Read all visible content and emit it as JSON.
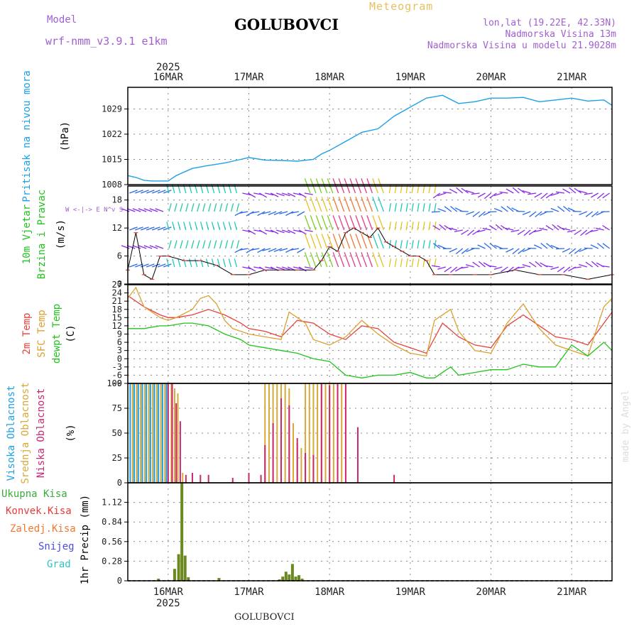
{
  "header": {
    "model_label": "Model",
    "model_value": "wrf-nmm_v3.9.1  e1km",
    "station": "GOLUBOVCI",
    "product": "Meteogram",
    "coords": "lon,lat (19.22E, 42.33N)",
    "elevation": "Nadmorska Visina 13m",
    "model_elevation": "Nadmorska Visina u modelu 21.9028m",
    "footer_station": "GOLUBOVCI",
    "credit": "made by Angel"
  },
  "colors": {
    "pressure": "#1ea0e6",
    "temp2m": "#e8403a",
    "sfc_temp": "#dca030",
    "dewpoint": "#22c31e",
    "cloud_high": "#1ea0e6",
    "cloud_mid": "#d8a838",
    "cloud_low": "#c82870",
    "precip_total": "#3caa3c",
    "precip_conv": "#e83a3a",
    "precip_strat": "#f07830",
    "snow": "#4a4ae8",
    "grad": "#2ec2c2",
    "wind_calm": "#7a1ed0",
    "wind_line": "#000000",
    "wind_marker": "#e8403a",
    "grid": "#888888"
  },
  "chart_data": {
    "type": "meteogram",
    "time_axis": {
      "year_label": "2025",
      "day_labels": [
        "16MAR",
        "17MAR",
        "18MAR",
        "19MAR",
        "20MAR",
        "21MAR"
      ],
      "range_days": [
        -0.5,
        5.5
      ]
    },
    "panels": [
      {
        "id": "pressure",
        "type": "line",
        "ylabel": [
          "Pritisak na nivou mora",
          "(hPa)"
        ],
        "yticks": [
          1008,
          1015,
          1022,
          1029
        ],
        "ylim": [
          1008,
          1035
        ],
        "series": [
          {
            "key": "pressure",
            "x": [
              -0.5,
              -0.4,
              -0.3,
              -0.2,
              0,
              0.1,
              0.2,
              0.3,
              0.5,
              0.7,
              0.9,
              1.0,
              1.2,
              1.4,
              1.6,
              1.8,
              1.9,
              2.0,
              2.2,
              2.4,
              2.6,
              2.8,
              3.0,
              3.2,
              3.4,
              3.6,
              3.8,
              4.0,
              4.2,
              4.4,
              4.6,
              4.8,
              5.0,
              5.2,
              5.4,
              5.5
            ],
            "y": [
              1010.5,
              1010,
              1009.2,
              1009,
              1009,
              1010.5,
              1011.5,
              1012.5,
              1013.3,
              1014,
              1015,
              1015.5,
              1014.8,
              1014.7,
              1014.5,
              1015,
              1016.5,
              1017.5,
              1020,
              1022.5,
              1023.5,
              1027,
              1029.5,
              1032,
              1032.8,
              1030.5,
              1031,
              1032,
              1032,
              1032.2,
              1031,
              1031.5,
              1032,
              1031.2,
              1031.5,
              1030
            ]
          }
        ]
      },
      {
        "id": "wind",
        "type": "barbs",
        "ylabel": [
          "10m Vjetar",
          "Brzina i Pravac",
          "(m/s)"
        ],
        "compass": "W <-|-> E  N^v S",
        "yticks": [
          0,
          6,
          12,
          18
        ],
        "ylim": [
          0,
          21
        ],
        "speed_x": [
          -0.5,
          -0.4,
          -0.3,
          -0.2,
          -0.1,
          0,
          0.2,
          0.4,
          0.6,
          0.8,
          1.0,
          1.2,
          1.4,
          1.6,
          1.8,
          1.9,
          2.0,
          2.1,
          2.2,
          2.3,
          2.4,
          2.5,
          2.6,
          2.7,
          2.8,
          2.9,
          3.0,
          3.1,
          3.2,
          3.3,
          3.5,
          3.8,
          4.0,
          4.3,
          4.6,
          4.9,
          5.2,
          5.5
        ],
        "speed_y": [
          3,
          11,
          2,
          1,
          6,
          6,
          5,
          5,
          4,
          2,
          2,
          3,
          3,
          3,
          3,
          5,
          8,
          7,
          11,
          12,
          11,
          10,
          12,
          9,
          8,
          7,
          6,
          6,
          5,
          2,
          2,
          2,
          2,
          3,
          2,
          2,
          1,
          2
        ]
      },
      {
        "id": "temperature",
        "type": "line",
        "ylabel": [
          "2m Temp",
          "SFC Temp",
          "dewpt Temp",
          "(C)"
        ],
        "yticks": [
          -9,
          -6,
          -3,
          0,
          3,
          6,
          9,
          12,
          15,
          18,
          21,
          24,
          27
        ],
        "ylim": [
          -9,
          27
        ],
        "series": [
          {
            "key": "temp2m",
            "x": [
              -0.5,
              -0.3,
              -0.1,
              0,
              0.1,
              0.3,
              0.5,
              0.7,
              0.9,
              1.0,
              1.2,
              1.4,
              1.6,
              1.8,
              2.0,
              2.2,
              2.4,
              2.6,
              2.8,
              3.0,
              3.2,
              3.4,
              3.6,
              3.8,
              4.0,
              4.2,
              4.4,
              4.6,
              4.8,
              5.0,
              5.2,
              5.4,
              5.5
            ],
            "y": [
              23,
              19,
              16,
              15,
              15,
              16,
              18,
              16,
              13,
              11,
              10,
              8,
              14,
              13,
              9,
              7,
              12,
              11,
              6,
              4,
              2,
              13,
              8,
              5,
              4,
              12,
              16,
              12,
              8,
              7,
              5,
              13,
              17
            ]
          },
          {
            "key": "sfc_temp",
            "x": [
              -0.5,
              -0.4,
              -0.3,
              -0.1,
              0,
              0.1,
              0.3,
              0.4,
              0.5,
              0.6,
              0.7,
              0.8,
              0.9,
              1.0,
              1.2,
              1.4,
              1.5,
              1.7,
              1.8,
              1.9,
              2.0,
              2.2,
              2.4,
              2.6,
              2.8,
              3.0,
              3.2,
              3.3,
              3.5,
              3.6,
              3.8,
              4.0,
              4.2,
              4.4,
              4.6,
              4.8,
              5.0,
              5.2,
              5.4,
              5.5
            ],
            "y": [
              22,
              26,
              19,
              15,
              14,
              15,
              18,
              22,
              23,
              20,
              14,
              11,
              10,
              9,
              8,
              7,
              17,
              13,
              7,
              6,
              5,
              8,
              14,
              9,
              5,
              2,
              1,
              14,
              18,
              10,
              3,
              2,
              13,
              20,
              11,
              5,
              3,
              1,
              19,
              22
            ]
          },
          {
            "key": "dewpoint",
            "x": [
              -0.5,
              -0.3,
              -0.1,
              0,
              0.2,
              0.3,
              0.5,
              0.7,
              0.9,
              1.0,
              1.2,
              1.4,
              1.6,
              1.8,
              2.0,
              2.2,
              2.4,
              2.6,
              2.8,
              3.0,
              3.2,
              3.3,
              3.5,
              3.6,
              3.8,
              4.0,
              4.2,
              4.4,
              4.6,
              4.8,
              5.0,
              5.2,
              5.4,
              5.5
            ],
            "y": [
              11,
              11,
              12,
              12,
              13,
              13,
              12,
              9,
              7,
              5,
              4,
              3,
              2,
              0,
              -1,
              -6,
              -7,
              -6,
              -6,
              -5,
              -7,
              -7,
              -3,
              -6,
              -5,
              -4,
              -4,
              -2,
              -3,
              -3,
              5,
              1,
              6,
              3
            ]
          }
        ]
      },
      {
        "id": "clouds",
        "type": "bar",
        "ylabel": [
          "Visoka Oblacnost",
          "Srednja Oblacnost",
          "Niska Oblacnost",
          "(%)"
        ],
        "yticks": [
          0,
          25,
          50,
          75,
          100
        ],
        "ylim": [
          0,
          100
        ],
        "high": {
          "x": [
            -0.47,
            -0.42,
            -0.37,
            -0.32,
            -0.27,
            -0.22,
            -0.17,
            -0.12,
            -0.07,
            -0.02
          ],
          "y": [
            100,
            100,
            100,
            100,
            100,
            100,
            100,
            100,
            100,
            100
          ]
        },
        "mid": {
          "x": [
            -0.44,
            -0.39,
            -0.34,
            -0.29,
            -0.24,
            -0.19,
            -0.14,
            -0.09,
            -0.04,
            0.04,
            0.08,
            0.12,
            0.18,
            1.2,
            1.25,
            1.3,
            1.35,
            1.4,
            1.45,
            1.5,
            1.55,
            1.6,
            1.65,
            1.7,
            1.75,
            1.8,
            1.85,
            1.9,
            1.95,
            2.0,
            2.05,
            2.1,
            2.15
          ],
          "y": [
            100,
            100,
            100,
            100,
            100,
            100,
            100,
            100,
            100,
            100,
            95,
            90,
            10,
            100,
            100,
            100,
            100,
            100,
            100,
            95,
            60,
            40,
            35,
            100,
            100,
            100,
            100,
            100,
            100,
            100,
            100,
            100,
            100
          ]
        },
        "low": {
          "x": [
            0.0,
            0.05,
            0.1,
            0.15,
            0.22,
            0.3,
            0.4,
            0.5,
            0.8,
            1.0,
            1.15,
            1.2,
            1.3,
            1.4,
            1.5,
            1.6,
            1.7,
            1.8,
            1.9,
            2.0,
            2.1,
            2.2,
            2.35,
            2.8
          ],
          "y": [
            100,
            100,
            80,
            62,
            8,
            10,
            8,
            8,
            5,
            10,
            8,
            38,
            60,
            85,
            78,
            45,
            30,
            28,
            100,
            98,
            100,
            100,
            56,
            8
          ]
        }
      },
      {
        "id": "precip",
        "type": "bar",
        "ylabel": [
          "1hr Precip",
          "(mm)"
        ],
        "legend": [
          "Ukupna Kisa",
          "Konvek.Kisa",
          "Zaledj.Kisa",
          "Snijeg",
          "Grad"
        ],
        "yticks": [
          0,
          0.28,
          0.56,
          0.84,
          1.12
        ],
        "ylim": [
          0,
          1.4
        ],
        "total": {
          "x": [
            -0.12,
            0.08,
            0.13,
            0.17,
            0.21,
            0.25,
            0.63,
            1.38,
            1.42,
            1.46,
            1.5,
            1.54,
            1.58,
            1.62,
            1.66
          ],
          "y": [
            0.03,
            0.17,
            0.38,
            1.4,
            0.36,
            0.05,
            0.04,
            0.02,
            0.06,
            0.13,
            0.09,
            0.24,
            0.06,
            0.08,
            0.03
          ]
        }
      }
    ]
  }
}
